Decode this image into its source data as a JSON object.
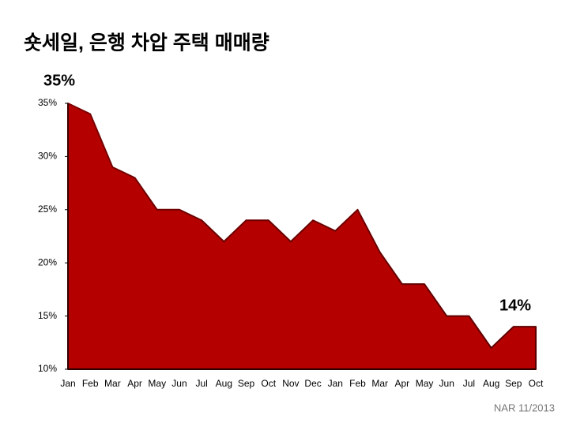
{
  "chart_data": {
    "type": "area",
    "title": "숏세일, 은행 차압 주택 매매량",
    "source": "NAR 11/2013",
    "categories": [
      "Jan",
      "Feb",
      "Mar",
      "Apr",
      "May",
      "Jun",
      "Jul",
      "Aug",
      "Sep",
      "Oct",
      "Nov",
      "Dec",
      "Jan",
      "Feb",
      "Mar",
      "Apr",
      "May",
      "Jun",
      "Jul",
      "Aug",
      "Sep",
      "Oct"
    ],
    "values": [
      35,
      34,
      29,
      28,
      25,
      25,
      24,
      22,
      24,
      24,
      22,
      24,
      23,
      25,
      21,
      18,
      18,
      15,
      15,
      12,
      14,
      14
    ],
    "value_labels": [
      "35%",
      null,
      null,
      null,
      null,
      null,
      null,
      null,
      null,
      null,
      null,
      null,
      null,
      null,
      null,
      null,
      null,
      null,
      null,
      null,
      null,
      "14%"
    ],
    "color": "#b50000",
    "ylim": [
      10,
      35
    ],
    "yticks": [
      {
        "value": 10,
        "label": "10%"
      },
      {
        "value": 15,
        "label": "15%"
      },
      {
        "value": 20,
        "label": "20%"
      },
      {
        "value": 25,
        "label": "25%"
      },
      {
        "value": 30,
        "label": "30%"
      },
      {
        "value": 35,
        "label": "35%"
      }
    ]
  }
}
